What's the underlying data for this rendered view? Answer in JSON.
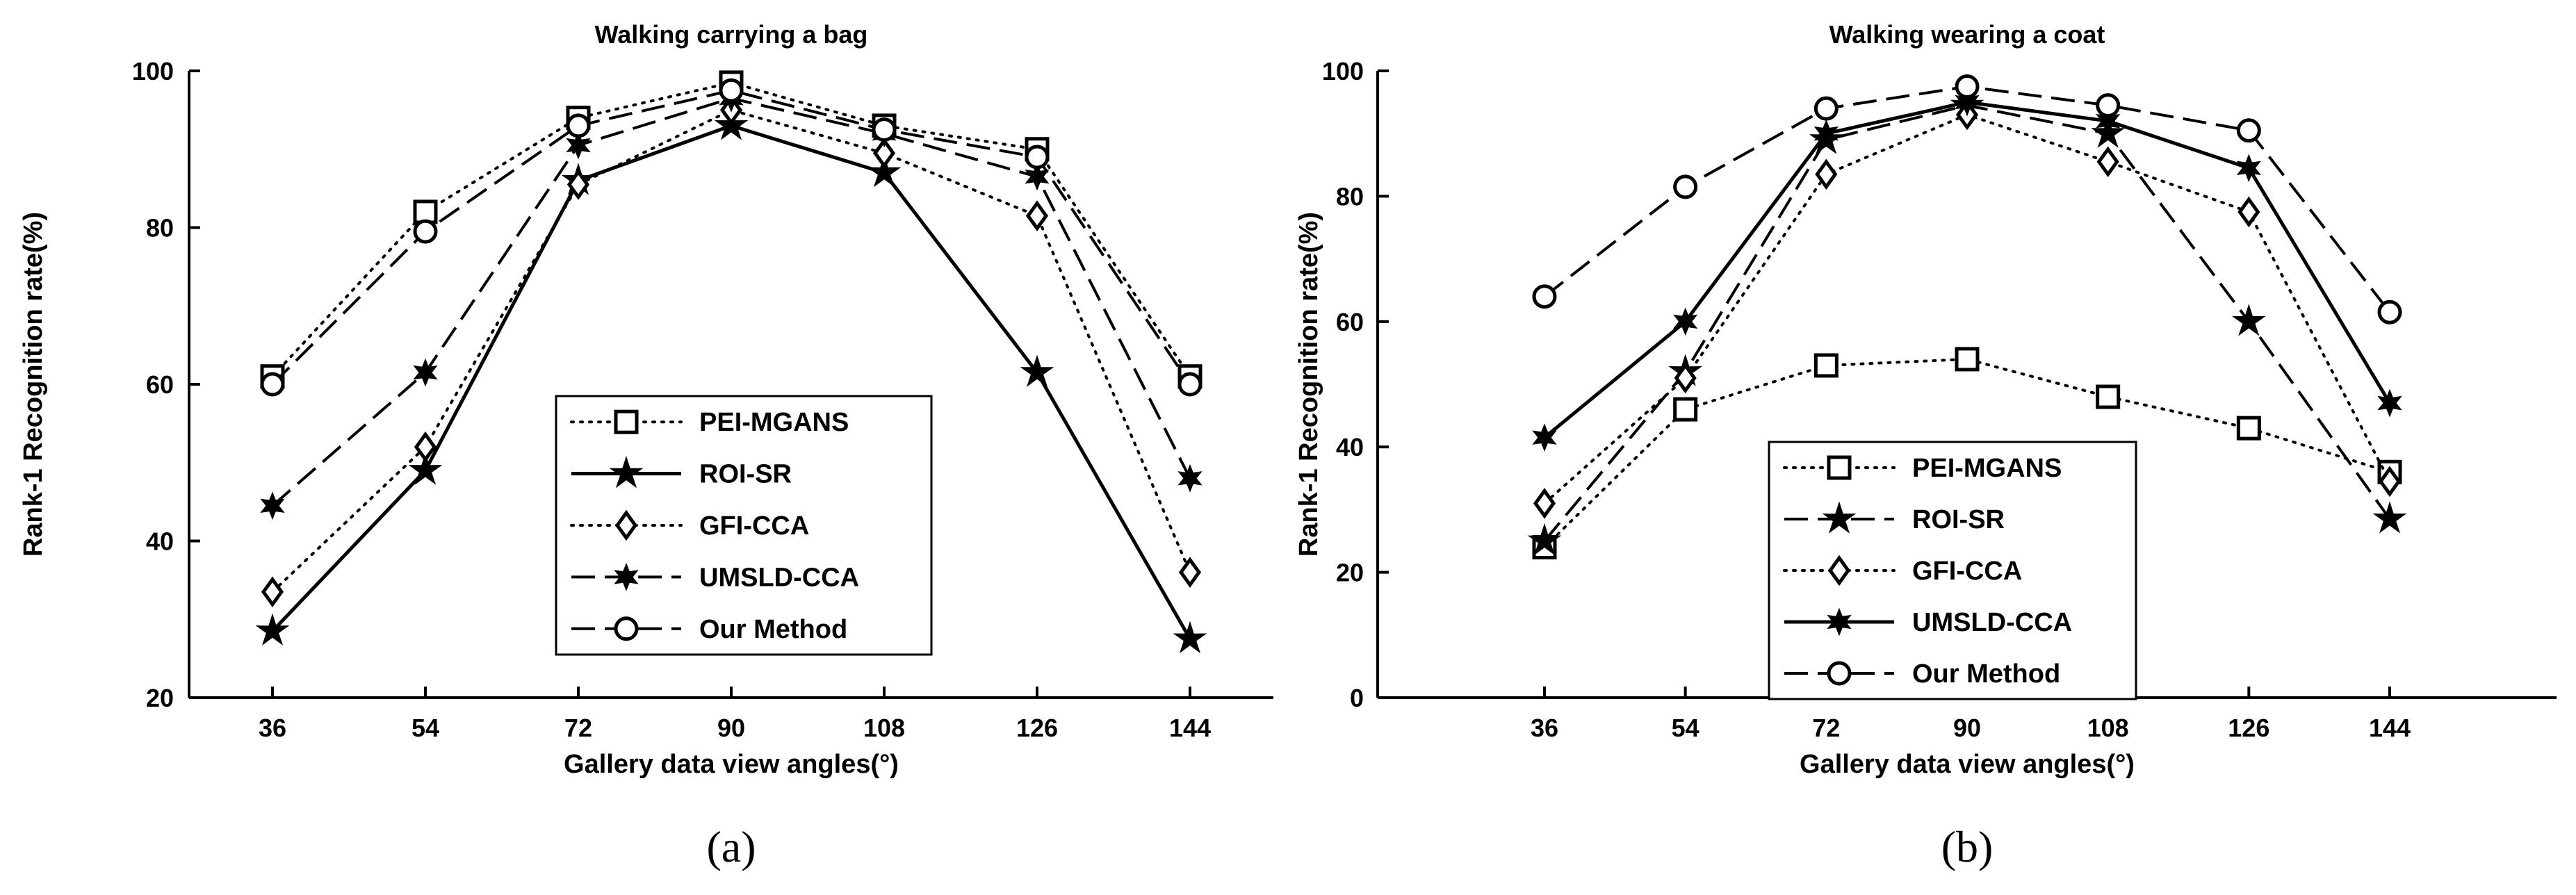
{
  "chart_data": [
    {
      "type": "line",
      "panel_label": "(a)",
      "title": "Walking carrying a bag",
      "xlabel": "Gallery data view angles(°)",
      "ylabel": "Rank-1 Recognition rate(%)",
      "x": [
        36,
        54,
        72,
        90,
        108,
        126,
        144
      ],
      "xticks": [
        "36",
        "54",
        "72",
        "90",
        "108",
        "126",
        "144"
      ],
      "ylim": [
        20,
        100
      ],
      "yticks": [
        20,
        40,
        60,
        80,
        100
      ],
      "ytick_labels": [
        "20",
        "40",
        "60",
        "80",
        "100"
      ],
      "grid": false,
      "legend_position": "center-right",
      "series": [
        {
          "name": "PEI-MGANS",
          "values": [
            61,
            82,
            94,
            98.5,
            93,
            90,
            61
          ],
          "line": "dotted",
          "marker": "square",
          "line_width": 4
        },
        {
          "name": "ROI-SR",
          "values": [
            28.5,
            49,
            86,
            93,
            87,
            61.5,
            27.5
          ],
          "line": "solid",
          "marker": "star",
          "line_width": 5
        },
        {
          "name": "GFI-CCA",
          "values": [
            33.5,
            52,
            85.5,
            95,
            89.5,
            81.5,
            36
          ],
          "line": "dotted",
          "marker": "diamond",
          "line_width": 4
        },
        {
          "name": "UMSLD-CCA",
          "values": [
            44.5,
            61.5,
            90.5,
            96.5,
            92,
            86.5,
            48
          ],
          "line": "dashed",
          "marker": "star6",
          "line_width": 4
        },
        {
          "name": "Our Method",
          "values": [
            60,
            79.5,
            93,
            97.5,
            92.5,
            89,
            60
          ],
          "line": "dashed",
          "marker": "circle",
          "line_width": 4
        }
      ]
    },
    {
      "type": "line",
      "panel_label": "(b)",
      "title": "Walking wearing a coat",
      "xlabel": "Gallery data view angles(°)",
      "ylabel": "Rank-1 Recognition rate(%)",
      "x": [
        36,
        54,
        72,
        90,
        108,
        126,
        144
      ],
      "xticks": [
        "36",
        "54",
        "72",
        "90",
        "108",
        "126",
        "144"
      ],
      "ylim": [
        0,
        100
      ],
      "yticks": [
        0,
        20,
        40,
        60,
        80,
        100
      ],
      "ytick_labels": [
        "0",
        "20",
        "40",
        "60",
        "80",
        "100"
      ],
      "grid": false,
      "legend_position": "lower-center",
      "series": [
        {
          "name": "PEI-MGANS",
          "values": [
            24,
            46,
            53,
            54,
            48,
            43,
            36
          ],
          "line": "dotted",
          "marker": "square",
          "line_width": 4
        },
        {
          "name": "ROI-SR",
          "values": [
            25,
            52,
            89,
            94.5,
            90,
            60,
            28.5
          ],
          "line": "dashed",
          "marker": "star",
          "line_width": 4
        },
        {
          "name": "GFI-CCA",
          "values": [
            31,
            51,
            83.5,
            93,
            85.5,
            77.5,
            34.5
          ],
          "line": "dotted",
          "marker": "diamond",
          "line_width": 4
        },
        {
          "name": "UMSLD-CCA",
          "values": [
            41.5,
            60,
            90,
            95,
            92,
            84.5,
            47
          ],
          "line": "solid",
          "marker": "star6",
          "line_width": 5
        },
        {
          "name": "Our Method",
          "values": [
            64,
            81.5,
            94,
            97.5,
            94.5,
            90.5,
            61.5
          ],
          "line": "dashed",
          "marker": "circle",
          "line_width": 4
        }
      ]
    }
  ]
}
